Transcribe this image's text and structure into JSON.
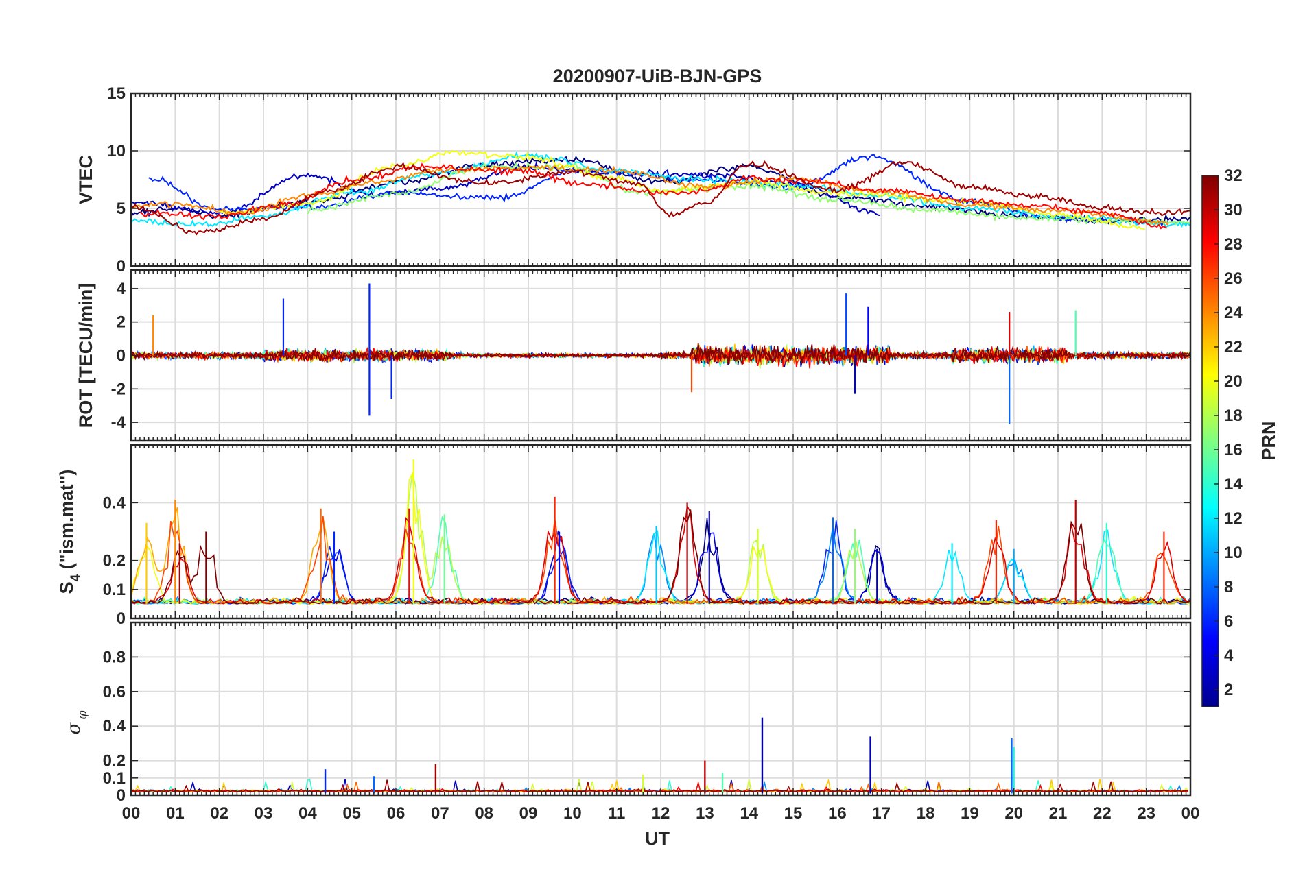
{
  "chart_data": {
    "type": "line",
    "title": "20200907-UiB-BJN-GPS",
    "xlabel": "UT",
    "x_ticks": [
      "00",
      "01",
      "02",
      "03",
      "04",
      "05",
      "06",
      "07",
      "08",
      "09",
      "10",
      "11",
      "12",
      "13",
      "14",
      "15",
      "16",
      "17",
      "18",
      "19",
      "20",
      "21",
      "22",
      "23",
      "00"
    ],
    "xlim_hours": [
      0,
      24
    ],
    "colorbar": {
      "label": "PRN",
      "range": [
        1,
        32
      ],
      "ticks": [
        "2",
        "4",
        "6",
        "8",
        "10",
        "12",
        "14",
        "16",
        "18",
        "20",
        "22",
        "24",
        "26",
        "28",
        "30",
        "32"
      ],
      "colormap": "jet",
      "colors": [
        "#00008f",
        "#0000ff",
        "#0080ff",
        "#00ffff",
        "#80ff80",
        "#ffff00",
        "#ff8000",
        "#ff0000",
        "#800000"
      ]
    },
    "panels": [
      {
        "name": "vtec",
        "ylabel": "VTEC",
        "ylim": [
          0,
          15
        ],
        "y_ticks": [
          0,
          5,
          10,
          15
        ],
        "y_tick_labels": [
          "0",
          "5",
          "10",
          "15"
        ],
        "series": [
          {
            "prn": 1,
            "points": [
              [
                0,
                4.6
              ],
              [
                1,
                4.9
              ],
              [
                2,
                4.4
              ],
              [
                4,
                5.5
              ],
              [
                6,
                7.2
              ],
              [
                8,
                8.8
              ],
              [
                10,
                9.2
              ],
              [
                12,
                7.3
              ],
              [
                14,
                8.6
              ],
              [
                16,
                6.0
              ],
              [
                18,
                5.2
              ],
              [
                20,
                4.4
              ],
              [
                22,
                3.9
              ],
              [
                24,
                4.1
              ]
            ]
          },
          {
            "prn": 3,
            "points": [
              [
                0,
                5.6
              ],
              [
                2,
                4.6
              ],
              [
                4,
                7.9
              ],
              [
                5.5,
                6.2
              ],
              [
                7,
                6.7
              ],
              [
                9,
                8.6
              ],
              [
                11,
                8.1
              ],
              [
                13,
                7.9
              ],
              [
                15,
                7.1
              ],
              [
                17,
                4.6
              ]
            ]
          },
          {
            "prn": 6,
            "points": [
              [
                0.4,
                7.6
              ],
              [
                2,
                4.9
              ],
              [
                4,
                5.1
              ],
              [
                6,
                6.3
              ],
              [
                8.4,
                5.9
              ],
              [
                10,
                8.3
              ],
              [
                13,
                7.5
              ],
              [
                15,
                6.8
              ],
              [
                16.7,
                9.5
              ],
              [
                19,
                5.6
              ],
              [
                21,
                4.1
              ],
              [
                23.5,
                3.7
              ]
            ]
          },
          {
            "prn": 12,
            "points": [
              [
                0,
                3.9
              ],
              [
                1.5,
                3.6
              ],
              [
                3,
                4.3
              ],
              [
                5,
                6.4
              ],
              [
                7,
                8.1
              ],
              [
                9,
                9.6
              ],
              [
                11,
                8.2
              ],
              [
                13,
                7.5
              ],
              [
                15,
                7.0
              ],
              [
                17,
                6.1
              ],
              [
                19,
                5.0
              ],
              [
                21,
                4.3
              ],
              [
                24,
                3.6
              ]
            ]
          },
          {
            "prn": 17,
            "points": [
              [
                4,
                4.8
              ],
              [
                6,
                6.3
              ],
              [
                8,
                8.6
              ],
              [
                10,
                8.6
              ],
              [
                11.5,
                6.4
              ],
              [
                14,
                6.9
              ],
              [
                16,
                5.7
              ],
              [
                18,
                4.9
              ],
              [
                20,
                4.2
              ],
              [
                22,
                3.9
              ],
              [
                24,
                3.8
              ]
            ]
          },
          {
            "prn": 20,
            "points": [
              [
                2,
                4.6
              ],
              [
                4,
                5.4
              ],
              [
                6,
                8.7
              ],
              [
                7.3,
                9.9
              ],
              [
                9,
                9.4
              ],
              [
                11,
                7.6
              ],
              [
                12,
                6.5
              ],
              [
                14,
                7.2
              ],
              [
                16,
                6.3
              ],
              [
                19,
                5.6
              ],
              [
                21,
                4.4
              ],
              [
                23,
                3.3
              ]
            ]
          },
          {
            "prn": 24,
            "points": [
              [
                0,
                5.1
              ],
              [
                1,
                5.4
              ],
              [
                2.5,
                4.6
              ],
              [
                4,
                6.1
              ],
              [
                5.5,
                7.3
              ],
              [
                7,
                8.3
              ],
              [
                9,
                8.5
              ],
              [
                11,
                8.3
              ],
              [
                13,
                6.9
              ],
              [
                15,
                7.6
              ],
              [
                17,
                6.4
              ],
              [
                19,
                5.3
              ],
              [
                21,
                4.8
              ],
              [
                23.5,
                3.8
              ]
            ]
          },
          {
            "prn": 28,
            "points": [
              [
                0.2,
                4.6
              ],
              [
                2,
                4.3
              ],
              [
                3.5,
                5.3
              ],
              [
                5,
                7.4
              ],
              [
                6.5,
                8.6
              ],
              [
                8.5,
                8.3
              ],
              [
                10.5,
                7.1
              ],
              [
                12,
                6.3
              ],
              [
                13,
                6.6
              ],
              [
                14,
                7.6
              ],
              [
                15.5,
                7.3
              ],
              [
                17,
                6.5
              ],
              [
                19,
                5.7
              ],
              [
                20.5,
                5.2
              ],
              [
                22,
                4.6
              ],
              [
                23.5,
                3.4
              ]
            ]
          },
          {
            "prn": 31,
            "points": [
              [
                0,
                5.2
              ],
              [
                1.5,
                2.9
              ],
              [
                3,
                4.1
              ],
              [
                4.5,
                6.6
              ],
              [
                6,
                8.6
              ],
              [
                8,
                7.2
              ],
              [
                10,
                8.1
              ],
              [
                11.5,
                7.1
              ],
              [
                12.2,
                4.4
              ],
              [
                13,
                5.5
              ],
              [
                14,
                8.9
              ],
              [
                16,
                6.6
              ],
              [
                17.5,
                8.9
              ],
              [
                19,
                6.9
              ],
              [
                20.5,
                6.0
              ],
              [
                22,
                5.0
              ],
              [
                23.5,
                4.6
              ],
              [
                24,
                4.7
              ]
            ]
          }
        ]
      },
      {
        "name": "rot",
        "ylabel": "ROT [TECU/min]",
        "ylim": [
          -5.1,
          5.1
        ],
        "y_ticks": [
          -4,
          -2,
          0,
          2,
          4
        ],
        "y_tick_labels": [
          "-4",
          "-2",
          "0",
          "2",
          "4"
        ],
        "spikes": [
          {
            "prn": 6,
            "t": 3.45,
            "v": 3.4
          },
          {
            "prn": 6,
            "t": 5.4,
            "v": 4.3
          },
          {
            "prn": 6,
            "t": 5.4,
            "v": -3.6
          },
          {
            "prn": 6,
            "t": 5.9,
            "v": -2.6
          },
          {
            "prn": 24,
            "t": 0.5,
            "v": 2.4
          },
          {
            "prn": 7,
            "t": 16.2,
            "v": 3.7
          },
          {
            "prn": 5,
            "t": 16.7,
            "v": 2.9
          },
          {
            "prn": 8,
            "t": 19.9,
            "v": -4.1
          },
          {
            "prn": 29,
            "t": 19.9,
            "v": 2.6
          },
          {
            "prn": 15,
            "t": 21.4,
            "v": 2.7
          },
          {
            "prn": 4,
            "t": 16.4,
            "v": -2.3
          },
          {
            "prn": 26,
            "t": 12.7,
            "v": -2.2
          }
        ]
      },
      {
        "name": "s4",
        "ylabel_main": "S",
        "ylabel_sub": "4",
        "ylabel_tail": " (\"ism.mat\")",
        "ylim": [
          0,
          0.6
        ],
        "y_ticks": [
          0,
          0.1,
          0.2,
          0.4
        ],
        "y_tick_labels": [
          "0",
          "0.1",
          "0.2",
          "0.4"
        ],
        "baseline": 0.05,
        "peaks": [
          {
            "prn": 24,
            "t": 1.0,
            "v": 0.41
          },
          {
            "prn": 22,
            "t": 0.35,
            "v": 0.33
          },
          {
            "prn": 31,
            "t": 1.1,
            "v": 0.26
          },
          {
            "prn": 32,
            "t": 1.7,
            "v": 0.3
          },
          {
            "prn": 25,
            "t": 4.3,
            "v": 0.38
          },
          {
            "prn": 6,
            "t": 4.6,
            "v": 0.3
          },
          {
            "prn": 28,
            "t": 6.3,
            "v": 0.38
          },
          {
            "prn": 20,
            "t": 6.4,
            "v": 0.55
          },
          {
            "prn": 16,
            "t": 7.1,
            "v": 0.36
          },
          {
            "prn": 27,
            "t": 9.6,
            "v": 0.42
          },
          {
            "prn": 5,
            "t": 9.7,
            "v": 0.3
          },
          {
            "prn": 11,
            "t": 11.9,
            "v": 0.32
          },
          {
            "prn": 31,
            "t": 12.6,
            "v": 0.4
          },
          {
            "prn": 2,
            "t": 13.1,
            "v": 0.37
          },
          {
            "prn": 19,
            "t": 14.2,
            "v": 0.31
          },
          {
            "prn": 8,
            "t": 15.9,
            "v": 0.35
          },
          {
            "prn": 17,
            "t": 16.4,
            "v": 0.31
          },
          {
            "prn": 3,
            "t": 16.9,
            "v": 0.24
          },
          {
            "prn": 12,
            "t": 18.6,
            "v": 0.26
          },
          {
            "prn": 27,
            "t": 19.6,
            "v": 0.34
          },
          {
            "prn": 10,
            "t": 20.0,
            "v": 0.24
          },
          {
            "prn": 30,
            "t": 21.4,
            "v": 0.41
          },
          {
            "prn": 14,
            "t": 22.1,
            "v": 0.33
          },
          {
            "prn": 27,
            "t": 23.4,
            "v": 0.3
          }
        ]
      },
      {
        "name": "sigma_phi",
        "ylabel_main": "σ",
        "ylabel_sub": "φ",
        "ylim": [
          0,
          1.0
        ],
        "y_ticks": [
          0,
          0.1,
          0.2,
          0.4,
          0.6,
          0.8
        ],
        "y_tick_labels": [
          "0",
          "0.1",
          "0.2",
          "0.4",
          "0.6",
          "0.8"
        ],
        "baseline": 0.02,
        "spikes": [
          {
            "prn": 2,
            "t": 14.3,
            "v": 0.45
          },
          {
            "prn": 3,
            "t": 16.75,
            "v": 0.34
          },
          {
            "prn": 8,
            "t": 19.95,
            "v": 0.33
          },
          {
            "prn": 13,
            "t": 20.0,
            "v": 0.28
          },
          {
            "prn": 30,
            "t": 13.0,
            "v": 0.2
          },
          {
            "prn": 31,
            "t": 6.9,
            "v": 0.18
          },
          {
            "prn": 6,
            "t": 4.4,
            "v": 0.15
          },
          {
            "prn": 19,
            "t": 11.6,
            "v": 0.12
          },
          {
            "prn": 8,
            "t": 5.5,
            "v": 0.11
          },
          {
            "prn": 15,
            "t": 13.4,
            "v": 0.13
          }
        ]
      }
    ]
  }
}
